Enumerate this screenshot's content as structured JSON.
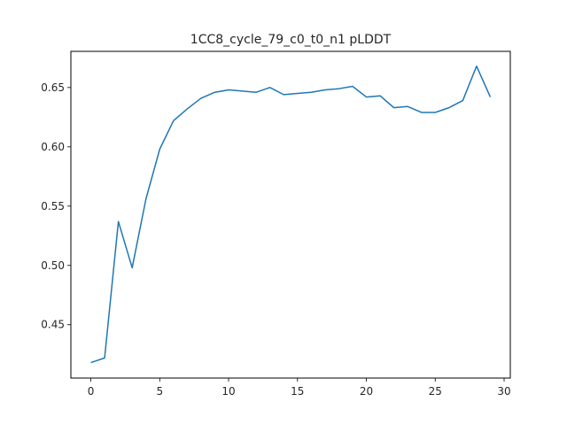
{
  "chart_data": {
    "type": "line",
    "title": "1CC8_cycle_79_c0_t0_n1 pLDDT",
    "xlabel": "",
    "ylabel": "",
    "xlim": [
      -1.45,
      30.45
    ],
    "ylim": [
      0.405,
      0.6805
    ],
    "xticks": [
      0,
      5,
      10,
      15,
      20,
      25,
      30
    ],
    "yticks": [
      0.45,
      0.5,
      0.55,
      0.6,
      0.65
    ],
    "ytick_labels": [
      "0.45",
      "0.50",
      "0.55",
      "0.60",
      "0.65"
    ],
    "grid": false,
    "series": [
      {
        "color": "#1f77b4",
        "x": [
          0,
          1,
          2,
          3,
          4,
          5,
          6,
          7,
          8,
          9,
          10,
          11,
          12,
          13,
          14,
          15,
          16,
          17,
          18,
          19,
          20,
          21,
          22,
          23,
          24,
          25,
          26,
          27,
          28,
          29
        ],
        "values": [
          0.418,
          0.422,
          0.537,
          0.498,
          0.556,
          0.598,
          0.622,
          0.632,
          0.641,
          0.646,
          0.648,
          0.647,
          0.646,
          0.65,
          0.644,
          0.645,
          0.646,
          0.648,
          0.649,
          0.651,
          0.642,
          0.643,
          0.633,
          0.634,
          0.629,
          0.629,
          0.633,
          0.639,
          0.668,
          0.642
        ]
      }
    ]
  }
}
